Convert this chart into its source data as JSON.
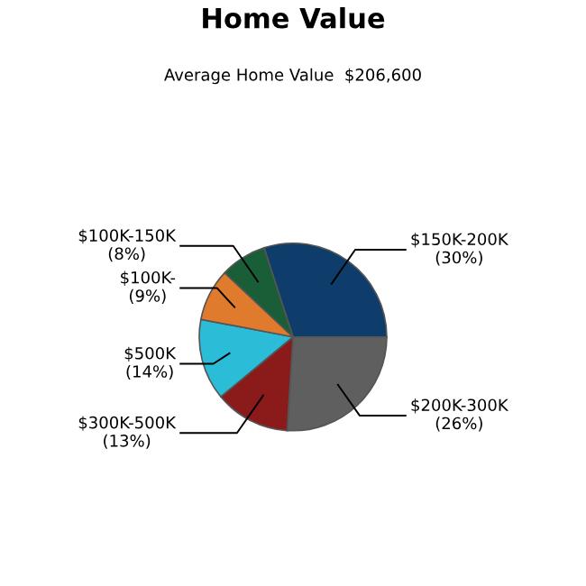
{
  "chart_data": {
    "type": "pie",
    "title": "Home Value",
    "subtitle": "Average Home Value  $206,600",
    "categories": [
      "$150K-200K",
      "$200K-300K",
      "$300K-500K",
      "$500K",
      "$100K-",
      "$100K-150K"
    ],
    "values": [
      30,
      26,
      13,
      14,
      9,
      8
    ],
    "value_labels": [
      "(30%)",
      "(26%)",
      "(13%)",
      "(14%)",
      "(9%)",
      "(8%)"
    ],
    "colors": [
      "#0e3d6b",
      "#5f5f5f",
      "#8b1a1a",
      "#2bbcd8",
      "#e07b2e",
      "#1a5e38"
    ],
    "legend": false
  }
}
